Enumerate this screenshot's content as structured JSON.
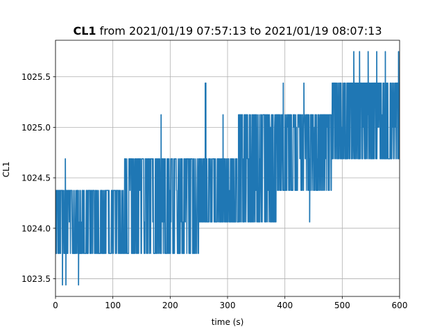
{
  "chart_data": {
    "type": "line",
    "title_bold": "CL1",
    "title_rest": " from 2021/01/19 07:57:13 to 2021/01/19 08:07:13",
    "xlabel": "time (s)",
    "ylabel": "CL1",
    "xlim": [
      0,
      600
    ],
    "ylim": [
      1023.325,
      1025.862
    ],
    "xticks": [
      0,
      100,
      200,
      300,
      400,
      500,
      600
    ],
    "xtick_labels": [
      "0",
      "100",
      "200",
      "300",
      "400",
      "500",
      "600"
    ],
    "yticks": [
      1023.5,
      1024.0,
      1024.5,
      1025.0,
      1025.5
    ],
    "ytick_labels": [
      "1023.5",
      "1024.0",
      "1024.5",
      "1025.0",
      "1025.5"
    ],
    "grid": true,
    "line_color": "#1f77b4",
    "quantization_levels": [
      1023.438,
      1023.75,
      1024.062,
      1024.375,
      1024.688,
      1025.0,
      1025.125,
      1025.438,
      1025.75
    ],
    "regimes": [
      {
        "x_start": 0,
        "x_end": 120,
        "low": 1023.75,
        "high": 1024.375
      },
      {
        "x_start": 120,
        "x_end": 250,
        "low": 1023.75,
        "high": 1024.688
      },
      {
        "x_start": 250,
        "x_end": 320,
        "low": 1024.062,
        "high": 1024.688
      },
      {
        "x_start": 320,
        "x_end": 385,
        "low": 1024.062,
        "high": 1025.125
      },
      {
        "x_start": 385,
        "x_end": 482,
        "low": 1024.375,
        "high": 1025.125
      },
      {
        "x_start": 482,
        "x_end": 600,
        "low": 1024.688,
        "high": 1025.438
      }
    ],
    "spikes": [
      {
        "x": 12,
        "value": 1023.438
      },
      {
        "x": 17,
        "value": 1024.688
      },
      {
        "x": 18,
        "value": 1023.438
      },
      {
        "x": 40,
        "value": 1023.438
      },
      {
        "x": 184,
        "value": 1025.125
      },
      {
        "x": 261,
        "value": 1025.438
      },
      {
        "x": 262,
        "value": 1025.438
      },
      {
        "x": 292,
        "value": 1025.125
      },
      {
        "x": 319,
        "value": 1025.125
      },
      {
        "x": 321,
        "value": 1025.125
      },
      {
        "x": 397,
        "value": 1025.438
      },
      {
        "x": 433,
        "value": 1025.438
      },
      {
        "x": 443,
        "value": 1024.062
      },
      {
        "x": 520,
        "value": 1025.75
      },
      {
        "x": 530,
        "value": 1025.75
      },
      {
        "x": 545,
        "value": 1025.75
      },
      {
        "x": 560,
        "value": 1025.75
      },
      {
        "x": 575,
        "value": 1025.75
      },
      {
        "x": 598,
        "value": 1025.75
      }
    ]
  }
}
